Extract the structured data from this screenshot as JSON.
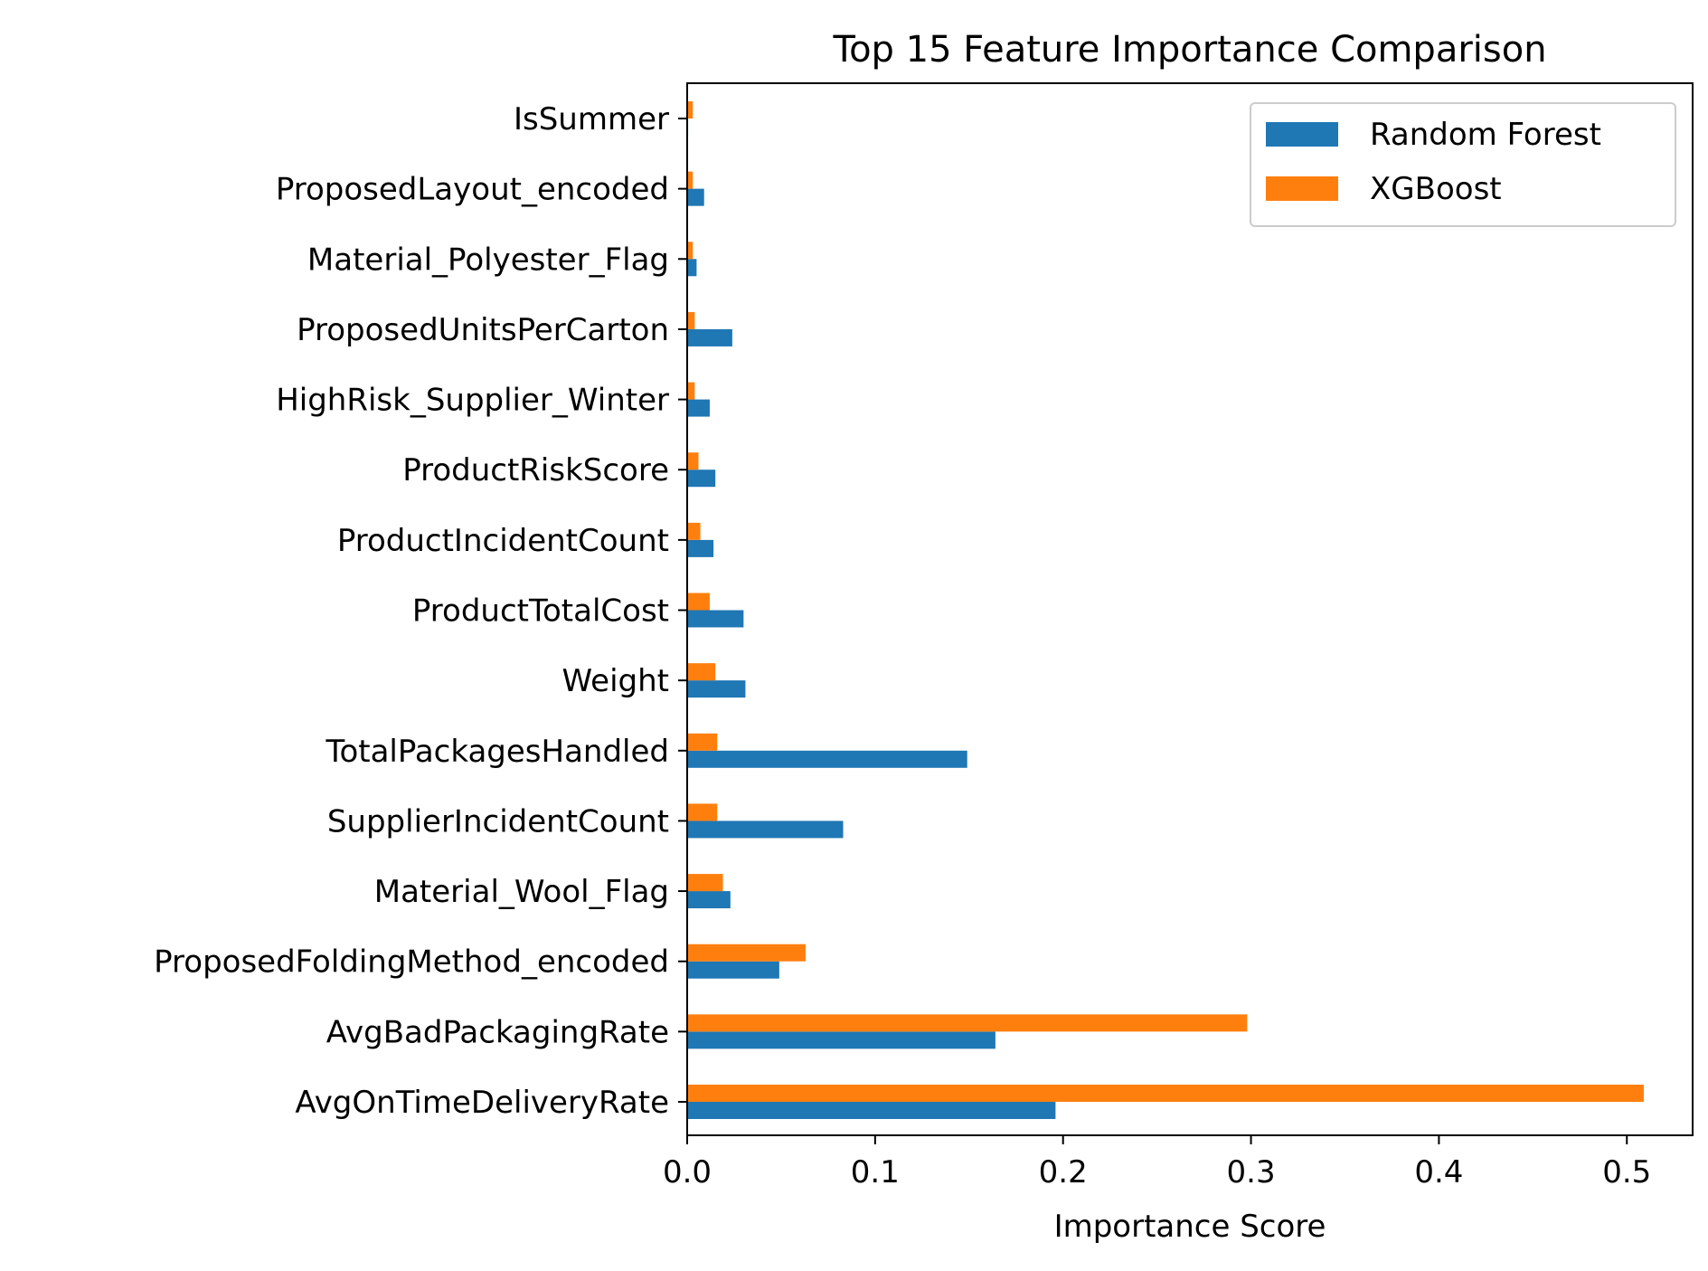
{
  "chart_data": {
    "type": "bar",
    "orientation": "horizontal",
    "title": "Top 15 Feature Importance Comparison",
    "xlabel": "Importance Score",
    "ylabel": "",
    "xlim": [
      0,
      0.535
    ],
    "xticks": [
      0.0,
      0.1,
      0.2,
      0.3,
      0.4,
      0.5
    ],
    "xtick_labels": [
      "0.0",
      "0.1",
      "0.2",
      "0.3",
      "0.4",
      "0.5"
    ],
    "grid": false,
    "legend_position": "top-right",
    "categories": [
      "AvgOnTimeDeliveryRate",
      "AvgBadPackagingRate",
      "ProposedFoldingMethod_encoded",
      "Material_Wool_Flag",
      "SupplierIncidentCount",
      "TotalPackagesHandled",
      "Weight",
      "ProductTotalCost",
      "ProductIncidentCount",
      "ProductRiskScore",
      "HighRisk_Supplier_Winter",
      "ProposedUnitsPerCarton",
      "Material_Polyester_Flag",
      "ProposedLayout_encoded",
      "IsSummer"
    ],
    "series": [
      {
        "name": "Random Forest",
        "color": "#1f77b4",
        "values": [
          0.196,
          0.164,
          0.049,
          0.023,
          0.083,
          0.149,
          0.031,
          0.03,
          0.014,
          0.015,
          0.012,
          0.024,
          0.005,
          0.009,
          0.0005
        ]
      },
      {
        "name": "XGBoost",
        "color": "#ff7f0e",
        "values": [
          0.509,
          0.298,
          0.063,
          0.019,
          0.016,
          0.016,
          0.015,
          0.012,
          0.007,
          0.006,
          0.004,
          0.004,
          0.003,
          0.003,
          0.003
        ]
      }
    ]
  }
}
